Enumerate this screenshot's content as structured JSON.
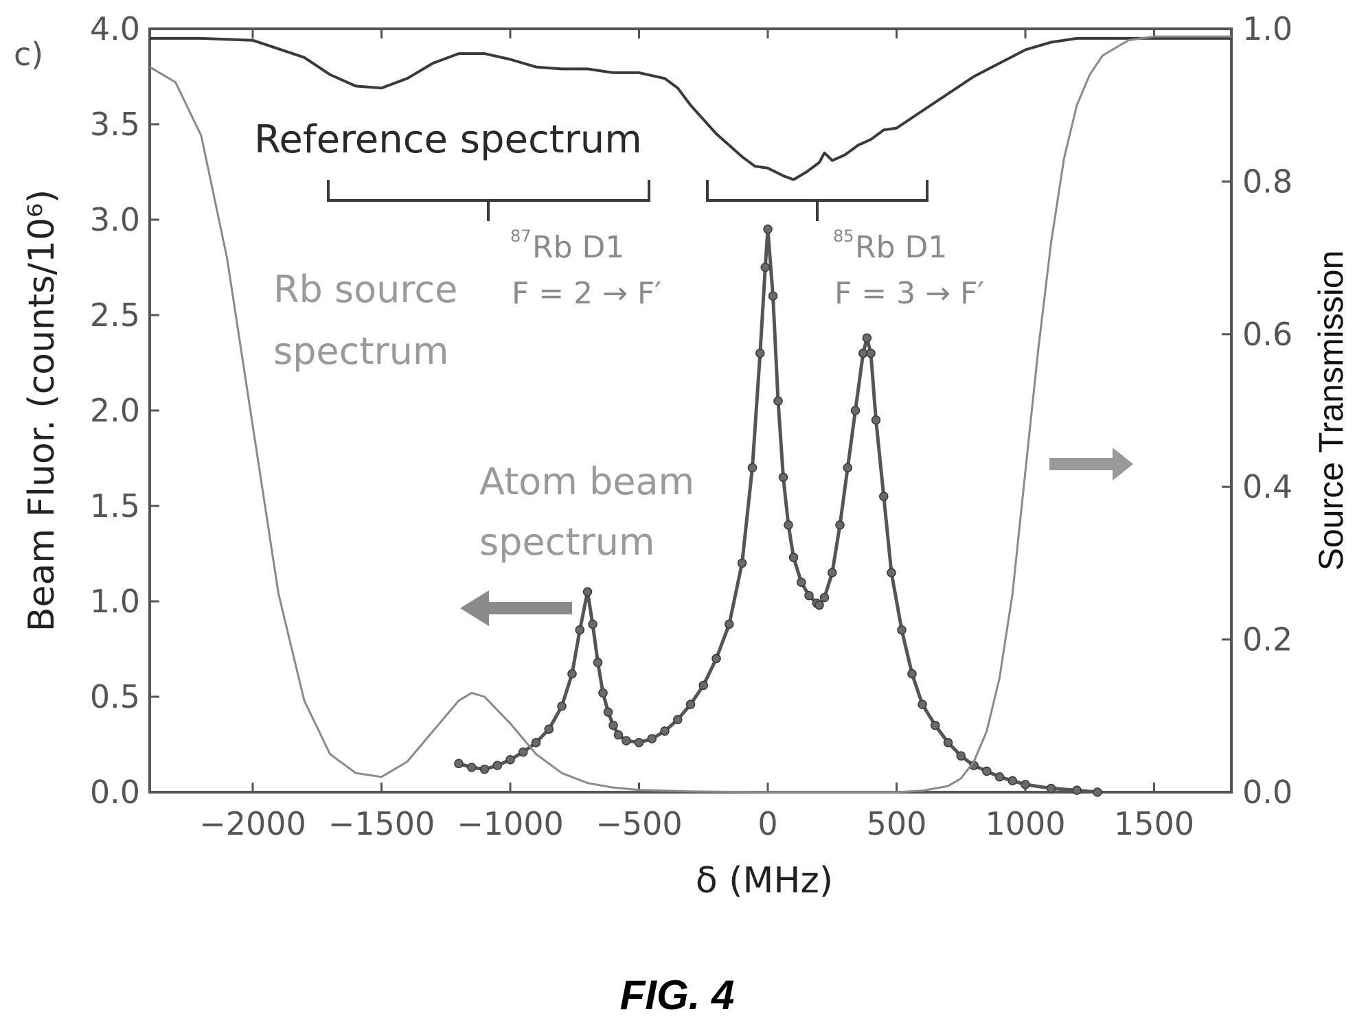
{
  "panel_label": "c)",
  "figure_caption": "FIG. 4",
  "chart_data": {
    "type": "line",
    "xlabel": "δ (MHz)",
    "ylabel": "Beam Fluor. (counts/10⁶)",
    "y2label": "Source Transmission",
    "xlim": [
      -2400,
      1800
    ],
    "ylim": [
      0,
      4.0
    ],
    "y2lim": [
      0,
      1.0
    ],
    "xticks": [
      -2000,
      -1500,
      -1000,
      -500,
      0,
      500,
      1000,
      1500
    ],
    "xtick_labels": [
      "−2000",
      "−1500",
      "−1000",
      "−500",
      "0",
      "500",
      "1000",
      "1500"
    ],
    "yticks": [
      0.0,
      0.5,
      1.0,
      1.5,
      2.0,
      2.5,
      3.0,
      3.5,
      4.0
    ],
    "ytick_labels": [
      "0.0",
      "0.5",
      "1.0",
      "1.5",
      "2.0",
      "2.5",
      "3.0",
      "3.5",
      "4.0"
    ],
    "y2ticks": [
      0.0,
      0.2,
      0.4,
      0.6,
      0.8,
      1.0
    ],
    "y2tick_labels": [
      "0.0",
      "0.2",
      "0.4",
      "0.6",
      "0.8",
      "1.0"
    ],
    "grid": false,
    "series": [
      {
        "axis": "left",
        "color": "#3a3a3a",
        "x": [
          -2400,
          -2200,
          -2000,
          -1800,
          -1700,
          -1600,
          -1500,
          -1400,
          -1300,
          -1200,
          -1100,
          -1000,
          -900,
          -800,
          -700,
          -600,
          -500,
          -400,
          -350,
          -300,
          -200,
          -100,
          -50,
          0,
          30,
          60,
          100,
          150,
          200,
          220,
          250,
          300,
          350,
          400,
          450,
          500,
          600,
          700,
          800,
          900,
          1000,
          1100,
          1200,
          1400,
          1600,
          1800
        ],
        "values": [
          3.95,
          3.95,
          3.94,
          3.85,
          3.76,
          3.7,
          3.69,
          3.74,
          3.82,
          3.87,
          3.87,
          3.84,
          3.8,
          3.79,
          3.79,
          3.77,
          3.77,
          3.74,
          3.69,
          3.6,
          3.45,
          3.33,
          3.28,
          3.27,
          3.25,
          3.23,
          3.21,
          3.25,
          3.3,
          3.35,
          3.31,
          3.34,
          3.39,
          3.42,
          3.47,
          3.48,
          3.57,
          3.66,
          3.75,
          3.82,
          3.89,
          3.93,
          3.95,
          3.95,
          3.95,
          3.95
        ]
      },
      {
        "axis": "left",
        "color": "#555555",
        "marker": true,
        "x": [
          -1200,
          -1150,
          -1100,
          -1050,
          -1000,
          -950,
          -900,
          -850,
          -800,
          -760,
          -730,
          -700,
          -680,
          -660,
          -640,
          -620,
          -600,
          -580,
          -550,
          -500,
          -450,
          -400,
          -350,
          -300,
          -250,
          -200,
          -150,
          -100,
          -60,
          -30,
          -10,
          0,
          20,
          40,
          60,
          80,
          100,
          130,
          160,
          190,
          200,
          220,
          250,
          280,
          310,
          340,
          370,
          385,
          400,
          420,
          450,
          480,
          520,
          560,
          600,
          650,
          700,
          750,
          800,
          850,
          900,
          950,
          1000,
          1100,
          1200,
          1280
        ],
        "values": [
          0.15,
          0.13,
          0.12,
          0.14,
          0.17,
          0.21,
          0.26,
          0.33,
          0.45,
          0.62,
          0.85,
          1.05,
          0.88,
          0.68,
          0.52,
          0.42,
          0.35,
          0.3,
          0.27,
          0.26,
          0.28,
          0.32,
          0.38,
          0.46,
          0.56,
          0.7,
          0.88,
          1.2,
          1.7,
          2.3,
          2.75,
          2.95,
          2.6,
          2.05,
          1.65,
          1.4,
          1.23,
          1.1,
          1.03,
          0.99,
          0.98,
          1.02,
          1.15,
          1.4,
          1.7,
          2.0,
          2.3,
          2.38,
          2.3,
          1.95,
          1.55,
          1.15,
          0.85,
          0.62,
          0.46,
          0.35,
          0.26,
          0.19,
          0.14,
          0.11,
          0.08,
          0.06,
          0.04,
          0.02,
          0.01,
          0.0
        ]
      },
      {
        "axis": "right",
        "color": "#8a8a8a",
        "x": [
          -2400,
          -2300,
          -2200,
          -2100,
          -2000,
          -1900,
          -1800,
          -1700,
          -1600,
          -1500,
          -1400,
          -1300,
          -1200,
          -1150,
          -1100,
          -1000,
          -900,
          -800,
          -700,
          -600,
          -500,
          -300,
          0,
          300,
          500,
          600,
          700,
          750,
          800,
          850,
          900,
          950,
          1000,
          1050,
          1100,
          1150,
          1200,
          1250,
          1300,
          1400,
          1500,
          1600,
          1700,
          1800
        ],
        "values": [
          0.95,
          0.93,
          0.86,
          0.7,
          0.48,
          0.26,
          0.12,
          0.05,
          0.025,
          0.02,
          0.04,
          0.08,
          0.12,
          0.13,
          0.125,
          0.09,
          0.05,
          0.025,
          0.012,
          0.006,
          0.003,
          0.001,
          0.0,
          0.0,
          0.0,
          0.002,
          0.008,
          0.018,
          0.04,
          0.08,
          0.15,
          0.26,
          0.42,
          0.58,
          0.72,
          0.83,
          0.9,
          0.94,
          0.965,
          0.985,
          0.99,
          0.99,
          0.99,
          0.99
        ]
      }
    ]
  },
  "annotations": {
    "reference_spectrum": "Reference spectrum",
    "rb87_mass": "87",
    "rb87_label": "Rb D1",
    "rb87_transition": "F = 2 → F′",
    "rb85_mass": "85",
    "rb85_label": "Rb D1",
    "rb85_transition": "F = 3 → F′",
    "rb_source_line1": "Rb source",
    "rb_source_line2": "spectrum",
    "atom_beam_line1": "Atom beam",
    "atom_beam_line2": "spectrum"
  }
}
